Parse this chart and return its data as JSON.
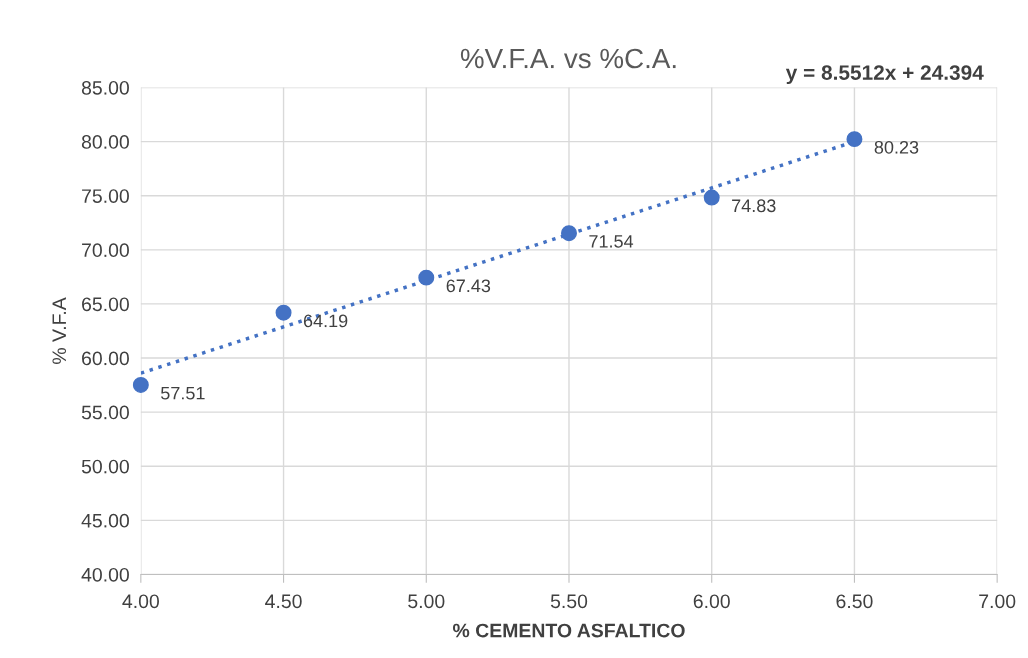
{
  "chart_data": {
    "type": "scatter",
    "title": "%V.F.A. vs %C.A.",
    "xlabel": "% CEMENTO ASFALTICO",
    "ylabel": "% V.F.A",
    "x": [
      4.0,
      4.5,
      5.0,
      5.5,
      6.0,
      6.5
    ],
    "series": [
      {
        "color": "#4472c4",
        "values": [
          57.51,
          64.19,
          67.43,
          71.54,
          74.83,
          80.23
        ],
        "value_labels": [
          "57.51",
          "64.19",
          "67.43",
          "71.54",
          "74.83",
          "80.23"
        ],
        "marker": "circle"
      },
      {
        "type": "line",
        "color": "#4472c4",
        "x": [
          4.0,
          6.5
        ],
        "values": [
          58.6,
          80.0
        ],
        "line_style": "dotted"
      }
    ],
    "annotations": [
      "y = 8.5512x + 24.394"
    ],
    "xlim": [
      4.0,
      7.0
    ],
    "xticks": [
      {
        "value": 4,
        "label": "4.00"
      },
      {
        "value": 4.5,
        "label": "4.50"
      },
      {
        "value": 5,
        "label": "5.00"
      },
      {
        "value": 5.5,
        "label": "5.50"
      },
      {
        "value": 6,
        "label": "6.00"
      },
      {
        "value": 6.5,
        "label": "6.50"
      },
      {
        "value": 7,
        "label": "7.00"
      }
    ],
    "ylim": [
      40,
      85
    ],
    "yticks": [
      {
        "value": 40,
        "label": "40.00"
      },
      {
        "value": 45,
        "label": "45.00"
      },
      {
        "value": 50,
        "label": "50.00"
      },
      {
        "value": 55,
        "label": "55.00"
      },
      {
        "value": 60,
        "label": "60.00"
      },
      {
        "value": 65,
        "label": "65.00"
      },
      {
        "value": 70,
        "label": "70.00"
      },
      {
        "value": 75,
        "label": "75.00"
      },
      {
        "value": 80,
        "label": "80.00"
      },
      {
        "value": 85,
        "label": "85.00"
      }
    ],
    "grid": true
  }
}
